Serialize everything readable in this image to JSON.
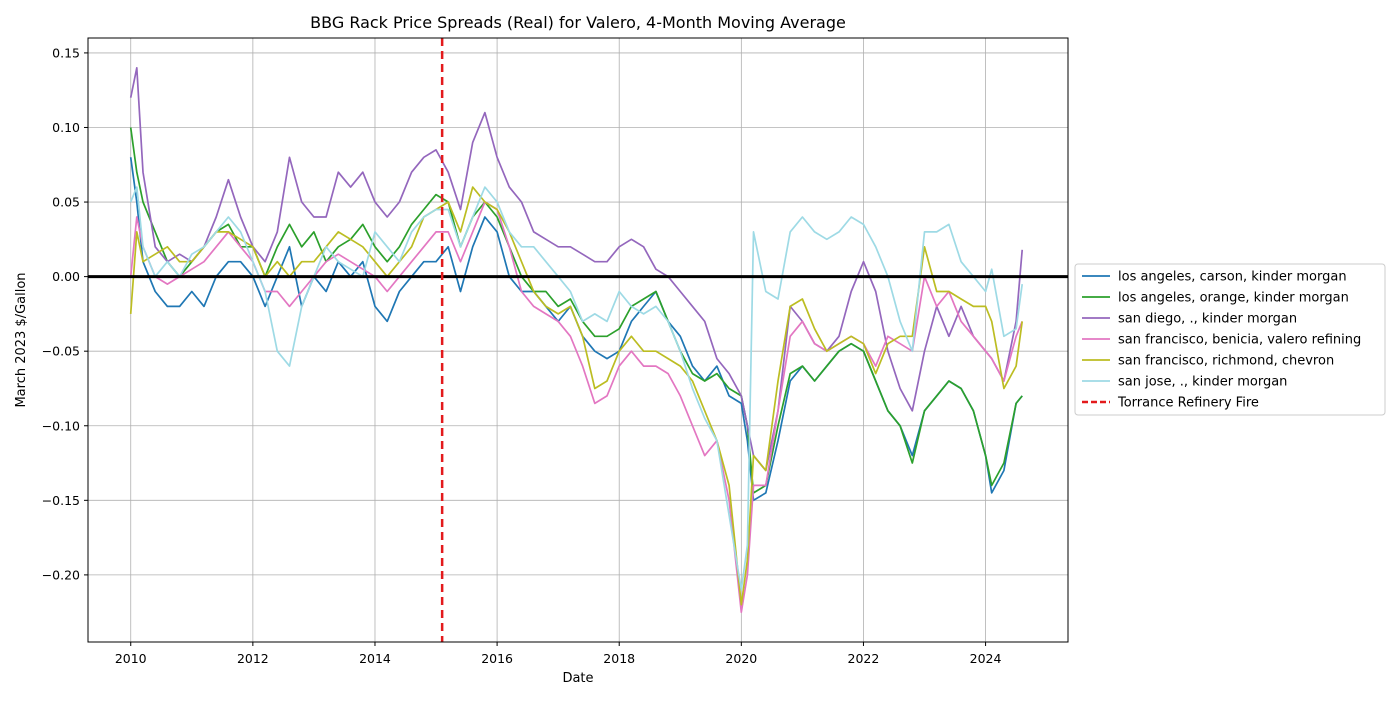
{
  "chart_data": {
    "type": "line",
    "title": "BBG Rack Price Spreads (Real) for Valero, 4-Month Moving Average",
    "xlabel": "Date",
    "ylabel": "March 2023 $/Gallon",
    "xlim": [
      2009.3,
      2025.35
    ],
    "ylim": [
      -0.245,
      0.16
    ],
    "xticks": [
      2010,
      2012,
      2014,
      2016,
      2018,
      2020,
      2022,
      2024
    ],
    "yticks": [
      -0.2,
      -0.15,
      -0.1,
      -0.05,
      0.0,
      0.05,
      0.1,
      0.15
    ],
    "ytick_labels": [
      "−0.20",
      "−0.15",
      "−0.10",
      "−0.05",
      "0.00",
      "0.05",
      "0.10",
      "0.15"
    ],
    "grid": true,
    "legend_position": "outside right",
    "zero_line": {
      "y": 0.0,
      "color": "#000000"
    },
    "event_line": {
      "name": "Torrance Refinery Fire",
      "x": 2015.1,
      "color": "#e31a1c",
      "style": "dashed"
    },
    "series": [
      {
        "name": "los angeles, carson, kinder morgan",
        "color": "#1f77b4",
        "x": [
          2010.0,
          2010.1,
          2010.2,
          2010.4,
          2010.6,
          2010.8,
          2011.0,
          2011.2,
          2011.4,
          2011.6,
          2011.8,
          2012.0,
          2012.2,
          2012.4,
          2012.6,
          2012.8,
          2013.0,
          2013.2,
          2013.4,
          2013.6,
          2013.8,
          2014.0,
          2014.2,
          2014.4,
          2014.6,
          2014.8,
          2015.0,
          2015.2,
          2015.4,
          2015.6,
          2015.8,
          2016.0,
          2016.2,
          2016.4,
          2016.6,
          2016.8,
          2017.0,
          2017.2,
          2017.4,
          2017.6,
          2017.8,
          2018.0,
          2018.2,
          2018.4,
          2018.6,
          2018.8,
          2019.0,
          2019.2,
          2019.4,
          2019.6,
          2019.8,
          2020.0,
          2020.1,
          2020.2,
          2020.4,
          2020.6,
          2020.8,
          2021.0,
          2021.2,
          2021.4,
          2021.6,
          2021.8,
          2022.0,
          2022.2,
          2022.4,
          2022.6,
          2022.8,
          2023.0,
          2023.2,
          2023.4,
          2023.6,
          2023.8,
          2024.0,
          2024.1,
          2024.3,
          2024.5,
          2024.6
        ],
        "y": [
          0.08,
          0.05,
          0.01,
          -0.01,
          -0.02,
          -0.02,
          -0.01,
          -0.02,
          0.0,
          0.01,
          0.01,
          0.0,
          -0.02,
          0.0,
          0.02,
          -0.02,
          0.0,
          -0.01,
          0.01,
          0.0,
          0.01,
          -0.02,
          -0.03,
          -0.01,
          0.0,
          0.01,
          0.01,
          0.02,
          -0.01,
          0.02,
          0.04,
          0.03,
          0.0,
          -0.01,
          -0.01,
          -0.02,
          -0.03,
          -0.02,
          -0.04,
          -0.05,
          -0.055,
          -0.05,
          -0.03,
          -0.02,
          -0.01,
          -0.03,
          -0.04,
          -0.06,
          -0.07,
          -0.06,
          -0.08,
          -0.085,
          -0.11,
          -0.15,
          -0.145,
          -0.11,
          -0.07,
          -0.06,
          -0.07,
          -0.06,
          -0.05,
          -0.045,
          -0.05,
          -0.07,
          -0.09,
          -0.1,
          -0.12,
          -0.09,
          -0.08,
          -0.07,
          -0.075,
          -0.09,
          -0.12,
          -0.145,
          -0.13,
          -0.085,
          -0.08
        ]
      },
      {
        "name": "los angeles, orange, kinder morgan",
        "color": "#2ca02c",
        "x": [
          2010.0,
          2010.1,
          2010.2,
          2010.4,
          2010.6,
          2010.8,
          2011.0,
          2011.2,
          2011.4,
          2011.6,
          2011.8,
          2012.0,
          2012.2,
          2012.4,
          2012.6,
          2012.8,
          2013.0,
          2013.2,
          2013.4,
          2013.6,
          2013.8,
          2014.0,
          2014.2,
          2014.4,
          2014.6,
          2014.8,
          2015.0,
          2015.2,
          2015.4,
          2015.6,
          2015.8,
          2016.0,
          2016.2,
          2016.4,
          2016.6,
          2016.8,
          2017.0,
          2017.2,
          2017.4,
          2017.6,
          2017.8,
          2018.0,
          2018.2,
          2018.4,
          2018.6,
          2018.8,
          2019.0,
          2019.2,
          2019.4,
          2019.6,
          2019.8,
          2020.0,
          2020.1,
          2020.2,
          2020.4,
          2020.6,
          2020.8,
          2021.0,
          2021.2,
          2021.4,
          2021.6,
          2021.8,
          2022.0,
          2022.2,
          2022.4,
          2022.6,
          2022.8,
          2023.0,
          2023.2,
          2023.4,
          2023.6,
          2023.8,
          2024.0,
          2024.1,
          2024.3,
          2024.5,
          2024.6
        ],
        "y": [
          0.1,
          0.07,
          0.05,
          0.03,
          0.01,
          0.0,
          0.01,
          0.02,
          0.03,
          0.035,
          0.02,
          0.02,
          0.0,
          0.02,
          0.035,
          0.02,
          0.03,
          0.01,
          0.02,
          0.025,
          0.035,
          0.02,
          0.01,
          0.02,
          0.035,
          0.045,
          0.055,
          0.05,
          0.02,
          0.04,
          0.05,
          0.04,
          0.02,
          0.0,
          -0.01,
          -0.01,
          -0.02,
          -0.015,
          -0.03,
          -0.04,
          -0.04,
          -0.035,
          -0.02,
          -0.015,
          -0.01,
          -0.03,
          -0.05,
          -0.065,
          -0.07,
          -0.065,
          -0.075,
          -0.08,
          -0.1,
          -0.145,
          -0.14,
          -0.1,
          -0.065,
          -0.06,
          -0.07,
          -0.06,
          -0.05,
          -0.045,
          -0.05,
          -0.07,
          -0.09,
          -0.1,
          -0.125,
          -0.09,
          -0.08,
          -0.07,
          -0.075,
          -0.09,
          -0.12,
          -0.14,
          -0.125,
          -0.085,
          -0.08
        ]
      },
      {
        "name": "san diego, ., kinder morgan",
        "color": "#9467bd",
        "x": [
          2010.0,
          2010.1,
          2010.2,
          2010.4,
          2010.6,
          2010.8,
          2011.0,
          2011.2,
          2011.4,
          2011.6,
          2011.8,
          2012.0,
          2012.2,
          2012.4,
          2012.6,
          2012.8,
          2013.0,
          2013.2,
          2013.4,
          2013.6,
          2013.8,
          2014.0,
          2014.2,
          2014.4,
          2014.6,
          2014.8,
          2015.0,
          2015.2,
          2015.4,
          2015.6,
          2015.8,
          2016.0,
          2016.2,
          2016.4,
          2016.6,
          2016.8,
          2017.0,
          2017.2,
          2017.4,
          2017.6,
          2017.8,
          2018.0,
          2018.2,
          2018.4,
          2018.6,
          2018.8,
          2019.0,
          2019.2,
          2019.4,
          2019.6,
          2019.8,
          2020.0,
          2020.1,
          2020.2,
          2020.4,
          2020.6,
          2020.8,
          2021.0,
          2021.2,
          2021.4,
          2021.6,
          2021.8,
          2022.0,
          2022.2,
          2022.4,
          2022.6,
          2022.8,
          2023.0,
          2023.2,
          2023.4,
          2023.6,
          2023.8,
          2024.0,
          2024.1,
          2024.3,
          2024.5,
          2024.6
        ],
        "y": [
          0.12,
          0.14,
          0.07,
          0.02,
          0.01,
          0.015,
          0.01,
          0.02,
          0.04,
          0.065,
          0.04,
          0.02,
          0.01,
          0.03,
          0.08,
          0.05,
          0.04,
          0.04,
          0.07,
          0.06,
          0.07,
          0.05,
          0.04,
          0.05,
          0.07,
          0.08,
          0.085,
          0.07,
          0.045,
          0.09,
          0.11,
          0.08,
          0.06,
          0.05,
          0.03,
          0.025,
          0.02,
          0.02,
          0.015,
          0.01,
          0.01,
          0.02,
          0.025,
          0.02,
          0.005,
          0.0,
          -0.01,
          -0.02,
          -0.03,
          -0.055,
          -0.065,
          -0.08,
          -0.1,
          -0.12,
          -0.13,
          -0.09,
          -0.02,
          -0.03,
          -0.045,
          -0.05,
          -0.04,
          -0.01,
          0.01,
          -0.01,
          -0.05,
          -0.075,
          -0.09,
          -0.05,
          -0.02,
          -0.04,
          -0.02,
          -0.04,
          -0.05,
          -0.055,
          -0.07,
          -0.03,
          0.018
        ]
      },
      {
        "name": "san francisco, benicia, valero refining",
        "color": "#e377c2",
        "x": [
          2010.0,
          2010.1,
          2010.2,
          2010.4,
          2010.6,
          2010.8,
          2011.0,
          2011.2,
          2011.4,
          2011.6,
          2011.8,
          2012.0,
          2012.2,
          2012.4,
          2012.6,
          2012.8,
          2013.0,
          2013.2,
          2013.4,
          2013.6,
          2013.8,
          2014.0,
          2014.2,
          2014.4,
          2014.6,
          2014.8,
          2015.0,
          2015.2,
          2015.4,
          2015.6,
          2015.8,
          2016.0,
          2016.2,
          2016.4,
          2016.6,
          2016.8,
          2017.0,
          2017.2,
          2017.4,
          2017.6,
          2017.8,
          2018.0,
          2018.2,
          2018.4,
          2018.6,
          2018.8,
          2019.0,
          2019.2,
          2019.4,
          2019.6,
          2019.8,
          2020.0,
          2020.1,
          2020.2,
          2020.4,
          2020.6,
          2020.8,
          2021.0,
          2021.2,
          2021.4,
          2021.6,
          2021.8,
          2022.0,
          2022.2,
          2022.4,
          2022.6,
          2022.8,
          2023.0,
          2023.2,
          2023.4,
          2023.6,
          2023.8,
          2024.0,
          2024.1,
          2024.3,
          2024.5,
          2024.6
        ],
        "y": [
          0.0,
          0.04,
          0.02,
          0.0,
          -0.005,
          0.0,
          0.005,
          0.01,
          0.02,
          0.03,
          0.02,
          0.01,
          -0.01,
          -0.01,
          -0.02,
          -0.01,
          0.0,
          0.01,
          0.015,
          0.01,
          0.005,
          0.0,
          -0.01,
          0.0,
          0.01,
          0.02,
          0.03,
          0.03,
          0.01,
          0.03,
          0.05,
          0.045,
          0.02,
          -0.01,
          -0.02,
          -0.025,
          -0.03,
          -0.04,
          -0.06,
          -0.085,
          -0.08,
          -0.06,
          -0.05,
          -0.06,
          -0.06,
          -0.065,
          -0.08,
          -0.1,
          -0.12,
          -0.11,
          -0.15,
          -0.225,
          -0.2,
          -0.14,
          -0.14,
          -0.09,
          -0.04,
          -0.03,
          -0.045,
          -0.05,
          -0.045,
          -0.04,
          -0.045,
          -0.06,
          -0.04,
          -0.045,
          -0.05,
          0.0,
          -0.02,
          -0.01,
          -0.03,
          -0.04,
          -0.05,
          -0.055,
          -0.07,
          -0.04,
          -0.03
        ]
      },
      {
        "name": "san francisco, richmond, chevron",
        "color": "#bcbd22",
        "x": [
          2010.0,
          2010.1,
          2010.2,
          2010.4,
          2010.6,
          2010.8,
          2011.0,
          2011.2,
          2011.4,
          2011.6,
          2011.8,
          2012.0,
          2012.2,
          2012.4,
          2012.6,
          2012.8,
          2013.0,
          2013.2,
          2013.4,
          2013.6,
          2013.8,
          2014.0,
          2014.2,
          2014.4,
          2014.6,
          2014.8,
          2015.0,
          2015.2,
          2015.4,
          2015.6,
          2015.8,
          2016.0,
          2016.2,
          2016.4,
          2016.6,
          2016.8,
          2017.0,
          2017.2,
          2017.4,
          2017.6,
          2017.8,
          2018.0,
          2018.2,
          2018.4,
          2018.6,
          2018.8,
          2019.0,
          2019.2,
          2019.4,
          2019.6,
          2019.8,
          2020.0,
          2020.1,
          2020.2,
          2020.4,
          2020.6,
          2020.8,
          2021.0,
          2021.2,
          2021.4,
          2021.6,
          2021.8,
          2022.0,
          2022.2,
          2022.4,
          2022.6,
          2022.8,
          2023.0,
          2023.2,
          2023.4,
          2023.6,
          2023.8,
          2024.0,
          2024.1,
          2024.3,
          2024.5,
          2024.6
        ],
        "y": [
          -0.025,
          0.03,
          0.01,
          0.015,
          0.02,
          0.01,
          0.01,
          0.02,
          0.03,
          0.03,
          0.025,
          0.02,
          0.0,
          0.01,
          0.0,
          0.01,
          0.01,
          0.02,
          0.03,
          0.025,
          0.02,
          0.01,
          0.0,
          0.01,
          0.02,
          0.04,
          0.045,
          0.05,
          0.03,
          0.06,
          0.05,
          0.045,
          0.03,
          0.01,
          -0.01,
          -0.02,
          -0.025,
          -0.02,
          -0.04,
          -0.075,
          -0.07,
          -0.05,
          -0.04,
          -0.05,
          -0.05,
          -0.055,
          -0.06,
          -0.07,
          -0.09,
          -0.11,
          -0.14,
          -0.22,
          -0.19,
          -0.12,
          -0.13,
          -0.07,
          -0.02,
          -0.015,
          -0.035,
          -0.05,
          -0.045,
          -0.04,
          -0.045,
          -0.065,
          -0.045,
          -0.04,
          -0.04,
          0.02,
          -0.01,
          -0.01,
          -0.015,
          -0.02,
          -0.02,
          -0.03,
          -0.075,
          -0.06,
          -0.03
        ]
      },
      {
        "name": "san jose, ., kinder morgan",
        "color": "#9edae5",
        "x": [
          2010.0,
          2010.1,
          2010.2,
          2010.4,
          2010.6,
          2010.8,
          2011.0,
          2011.2,
          2011.4,
          2011.6,
          2011.8,
          2012.0,
          2012.2,
          2012.4,
          2012.6,
          2012.8,
          2013.0,
          2013.2,
          2013.4,
          2013.6,
          2013.8,
          2014.0,
          2014.2,
          2014.4,
          2014.6,
          2014.8,
          2015.0,
          2015.2,
          2015.4,
          2015.6,
          2015.8,
          2016.0,
          2016.2,
          2016.4,
          2016.6,
          2016.8,
          2017.0,
          2017.2,
          2017.4,
          2017.6,
          2017.8,
          2018.0,
          2018.2,
          2018.4,
          2018.6,
          2018.8,
          2019.0,
          2019.2,
          2019.4,
          2019.6,
          2019.8,
          2020.0,
          2020.1,
          2020.2,
          2020.4,
          2020.6,
          2020.8,
          2021.0,
          2021.2,
          2021.4,
          2021.6,
          2021.8,
          2022.0,
          2022.2,
          2022.4,
          2022.6,
          2022.8,
          2023.0,
          2023.2,
          2023.4,
          2023.6,
          2023.8,
          2024.0,
          2024.1,
          2024.3,
          2024.5,
          2024.6
        ],
        "y": [
          0.05,
          0.06,
          0.02,
          0.0,
          0.01,
          0.0,
          0.015,
          0.02,
          0.03,
          0.04,
          0.03,
          0.01,
          -0.01,
          -0.05,
          -0.06,
          -0.02,
          0.0,
          0.02,
          0.01,
          0.005,
          0.0,
          0.03,
          0.02,
          0.01,
          0.03,
          0.04,
          0.045,
          0.045,
          0.02,
          0.04,
          0.06,
          0.05,
          0.03,
          0.02,
          0.02,
          0.01,
          0.0,
          -0.01,
          -0.03,
          -0.025,
          -0.03,
          -0.01,
          -0.02,
          -0.025,
          -0.02,
          -0.03,
          -0.05,
          -0.075,
          -0.095,
          -0.11,
          -0.16,
          -0.21,
          -0.18,
          0.03,
          -0.01,
          -0.015,
          0.03,
          0.04,
          0.03,
          0.025,
          0.03,
          0.04,
          0.035,
          0.02,
          0.0,
          -0.03,
          -0.05,
          0.03,
          0.03,
          0.035,
          0.01,
          0.0,
          -0.01,
          0.005,
          -0.04,
          -0.035,
          -0.005
        ]
      }
    ]
  }
}
